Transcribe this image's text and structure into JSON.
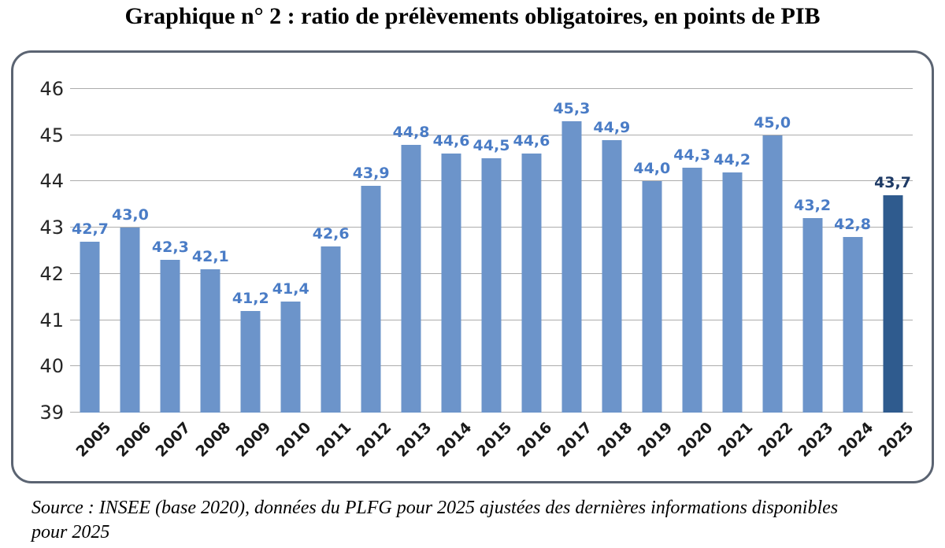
{
  "title": "Graphique n° 2 : ratio de prélèvements obligatoires, en points de PIB",
  "source": {
    "line1": "Source : INSEE (base 2020), données du PLFG pour 2025 ajustées des dernières informations disponibles",
    "line2": "pour 2025"
  },
  "chart_data": {
    "type": "bar",
    "title": "Graphique n° 2 : ratio de prélèvements obligatoires, en points de PIB",
    "xlabel": "",
    "ylabel": "",
    "categories": [
      "2005",
      "2006",
      "2007",
      "2008",
      "2009",
      "2010",
      "2011",
      "2012",
      "2013",
      "2014",
      "2015",
      "2016",
      "2017",
      "2018",
      "2019",
      "2020",
      "2021",
      "2022",
      "2023",
      "2024",
      "2025"
    ],
    "values": [
      42.7,
      43.0,
      42.3,
      42.1,
      41.2,
      41.4,
      42.6,
      43.9,
      44.8,
      44.6,
      44.5,
      44.6,
      45.3,
      44.9,
      44.0,
      44.3,
      44.2,
      45.0,
      43.2,
      42.8,
      43.7
    ],
    "value_labels": [
      "42,7",
      "43,0",
      "42,3",
      "42,1",
      "41,2",
      "41,4",
      "42,6",
      "43,9",
      "44,8",
      "44,6",
      "44,5",
      "44,6",
      "45,3",
      "44,9",
      "44,0",
      "44,3",
      "44,2",
      "45,0",
      "43,2",
      "42,8",
      "43,7"
    ],
    "ylim": [
      39,
      46
    ],
    "yticks": [
      39,
      40,
      41,
      42,
      43,
      44,
      45,
      46
    ],
    "grid": true,
    "legend": "none",
    "highlight_index": 20,
    "colors": {
      "bar": "#6C94CA",
      "highlight_bar": "#2F5B8E",
      "label": "#4A7CC6",
      "highlight_label": "#1F3B66",
      "gridline": "#ACACAC",
      "axis_text": "#262626",
      "frame_border": "#5B6472"
    }
  }
}
